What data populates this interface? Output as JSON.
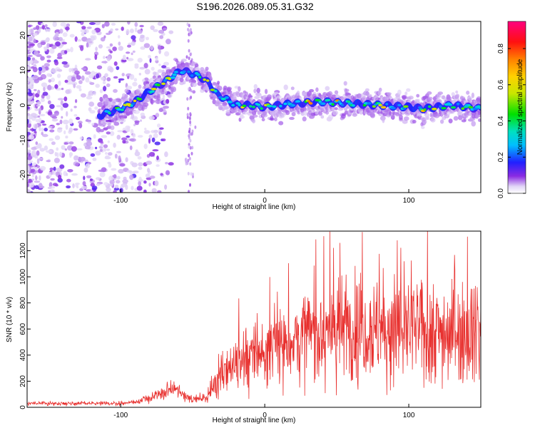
{
  "title": "S196.2026.089.05.31.G32",
  "chart_data": [
    {
      "type": "heatmap",
      "name": "spectrogram",
      "xlabel": "Height of straight line (km)",
      "ylabel": "Frequency (Hz)",
      "xlim": [
        -165,
        150
      ],
      "ylim": [
        -25,
        24
      ],
      "xticks": [
        -100,
        0,
        100
      ],
      "yticks": [
        -20,
        -10,
        0,
        10,
        20
      ],
      "colorbar": {
        "label": "Normalized spectral amplitude",
        "range": [
          0,
          0.95
        ],
        "ticks": [
          "0.0",
          "0.2",
          "0.4",
          "0.6",
          "0.8"
        ],
        "tick_values": [
          0,
          0.2,
          0.4,
          0.6,
          0.8
        ]
      },
      "ridge": {
        "x": [
          -115,
          -100,
          -90,
          -80,
          -72,
          -65,
          -58,
          -50,
          -44,
          -38,
          -33,
          -28,
          -20,
          -10,
          0,
          20,
          40,
          60,
          80,
          100,
          110,
          130,
          150
        ],
        "y": [
          -3,
          -1,
          1,
          4,
          6,
          8,
          10,
          9,
          8,
          6,
          3,
          2,
          0,
          0,
          -0.5,
          0.5,
          1,
          0.5,
          0,
          -0.5,
          -1,
          0,
          -1
        ]
      }
    },
    {
      "type": "line",
      "name": "snr",
      "xlabel": "Height of straight line (km)",
      "ylabel": "SNR (10 * v/v)",
      "xlim": [
        -165,
        150
      ],
      "ylim": [
        0,
        1350
      ],
      "xticks": [
        -100,
        0,
        100
      ],
      "yticks": [
        0,
        200,
        400,
        600,
        800,
        1000,
        1200
      ],
      "color": "#e8302e",
      "envelope": {
        "x": [
          -165,
          -100,
          -90,
          -80,
          -70,
          -65,
          -60,
          -50,
          -40,
          -35,
          -30,
          -25,
          -20,
          -10,
          0,
          10,
          20,
          30,
          50,
          70,
          90,
          110,
          130,
          150
        ],
        "y": [
          30,
          30,
          40,
          70,
          110,
          150,
          120,
          60,
          80,
          180,
          280,
          300,
          360,
          400,
          420,
          480,
          520,
          560,
          600,
          620,
          600,
          600,
          580,
          620
        ]
      }
    }
  ]
}
